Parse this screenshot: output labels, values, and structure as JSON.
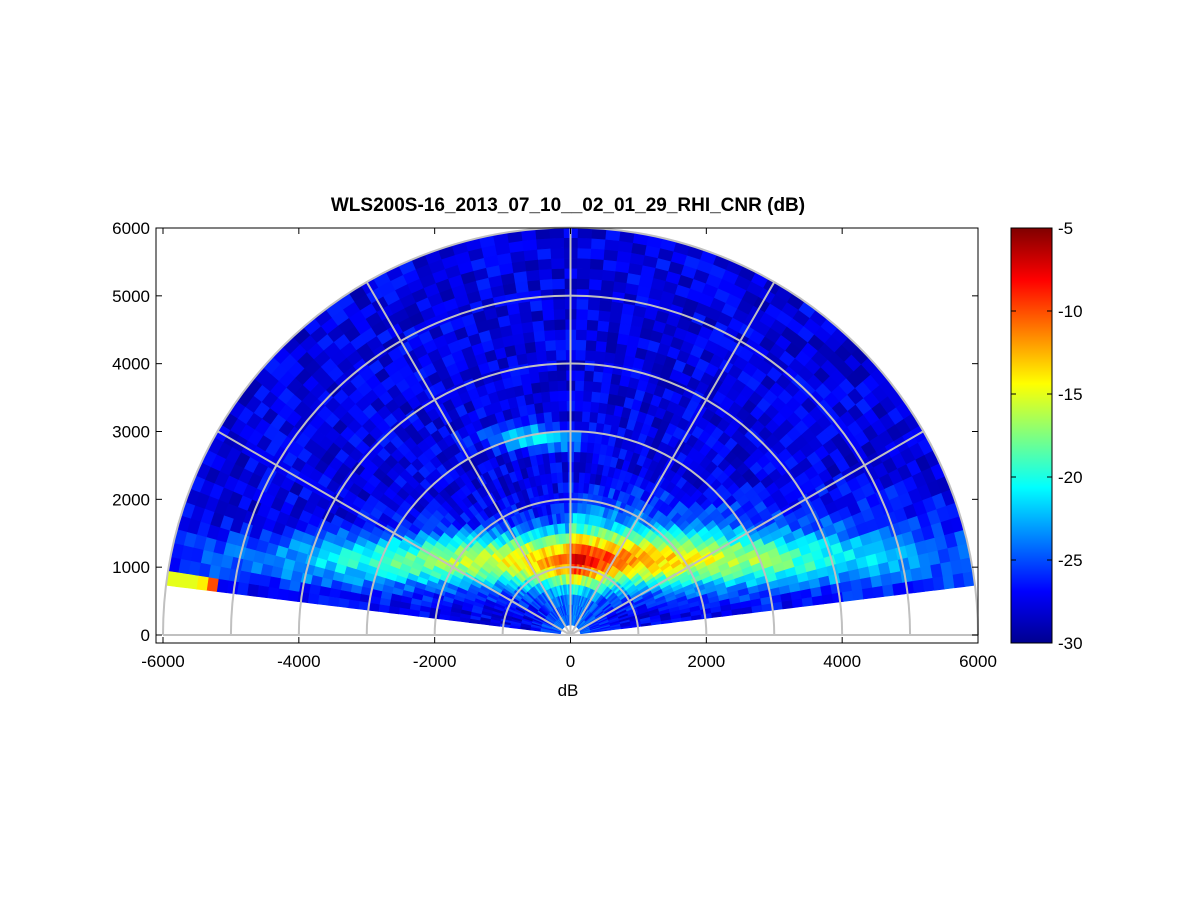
{
  "chart_data": {
    "type": "heatmap",
    "subtype": "polar-rhi-sector",
    "title": "WLS200S-16_2013_07_10__02_01_29_RHI_CNR (dB)",
    "xlabel": "dB",
    "ylabel": "",
    "xlim": [
      -6000,
      6000
    ],
    "ylim": [
      0,
      6000
    ],
    "x_ticks": [
      "-6000",
      "-4000",
      "-2000",
      "0",
      "2000",
      "4000",
      "6000"
    ],
    "y_ticks": [
      "0",
      "1000",
      "2000",
      "3000",
      "4000",
      "5000",
      "6000"
    ],
    "range_rings": [
      1000,
      2000,
      3000,
      4000,
      5000,
      6000
    ],
    "spoke_angles_deg": [
      0,
      30,
      60,
      90,
      120,
      150,
      180
    ],
    "elevation_scan_deg": [
      7,
      173
    ],
    "max_range": 6000,
    "colorbar": {
      "min": -30,
      "max": -5,
      "ticks": [
        "-5",
        "-10",
        "-15",
        "-20",
        "-25",
        "-30"
      ],
      "colormap": "jet"
    },
    "features": [
      {
        "name": "strong-layer-core",
        "range": 1200,
        "elevation_deg": 80,
        "cnr_db": -12
      },
      {
        "name": "aerosol-layer",
        "height": 1100,
        "cnr_db": -16
      },
      {
        "name": "near-horizon-spike",
        "x": -5300,
        "y": 1000,
        "cnr_db": -10
      },
      {
        "name": "upper-patch",
        "x": -500,
        "y": 2900,
        "cnr_db": -21
      }
    ],
    "grid": true
  }
}
